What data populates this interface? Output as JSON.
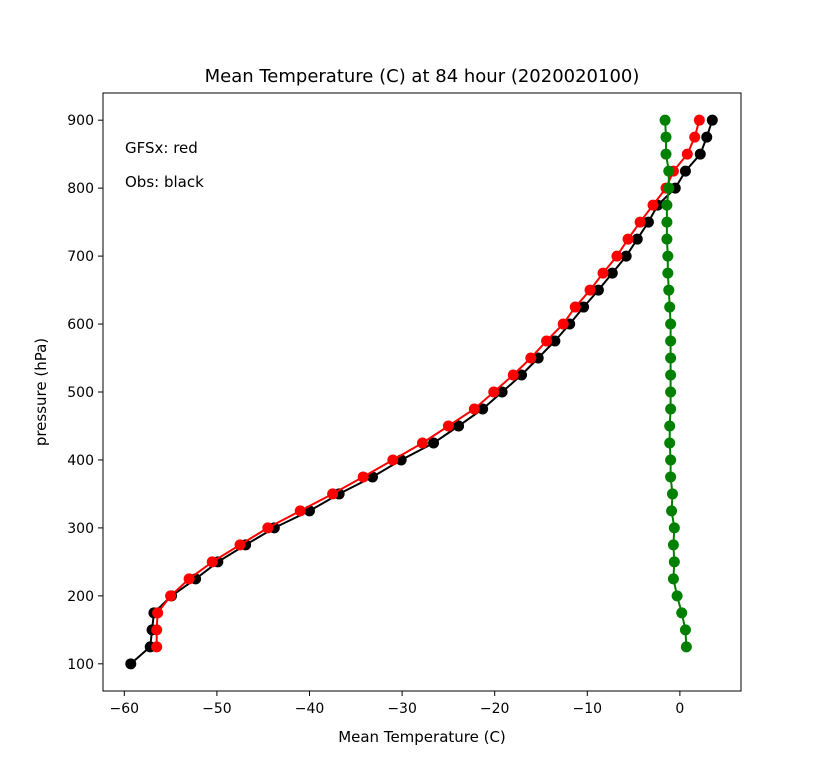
{
  "chart_data": {
    "type": "line",
    "title": "Mean Temperature (C) at 84 hour (2020020100)",
    "xlabel": "Mean Temperature (C)",
    "ylabel": "pressure (hPa)",
    "xlim": [
      -62.3,
      6.6
    ],
    "ylim": [
      60,
      940
    ],
    "xticks": [
      -60,
      -50,
      -40,
      -30,
      -20,
      -10,
      0
    ],
    "xtick_labels": [
      "−60",
      "−50",
      "−40",
      "−30",
      "−20",
      "−10",
      "0"
    ],
    "yticks": [
      100,
      200,
      300,
      400,
      500,
      600,
      700,
      800,
      900
    ],
    "ytick_labels": [
      "100",
      "200",
      "300",
      "400",
      "500",
      "600",
      "700",
      "800",
      "900"
    ],
    "grid": false,
    "annotations": [
      "GFSx: red",
      "Obs: black"
    ],
    "series": [
      {
        "color": "#000000",
        "points": [
          [
            -59.3,
            100
          ],
          [
            -57.2,
            125
          ],
          [
            -57.0,
            150
          ],
          [
            -56.8,
            175
          ],
          [
            -54.9,
            200
          ],
          [
            -52.3,
            225
          ],
          [
            -49.9,
            250
          ],
          [
            -46.9,
            275
          ],
          [
            -43.8,
            300
          ],
          [
            -40.0,
            325
          ],
          [
            -36.8,
            350
          ],
          [
            -33.2,
            375
          ],
          [
            -30.1,
            400
          ],
          [
            -26.6,
            425
          ],
          [
            -23.9,
            450
          ],
          [
            -21.3,
            475
          ],
          [
            -19.2,
            500
          ],
          [
            -17.1,
            525
          ],
          [
            -15.3,
            550
          ],
          [
            -13.5,
            575
          ],
          [
            -11.9,
            600
          ],
          [
            -10.4,
            625
          ],
          [
            -8.8,
            650
          ],
          [
            -7.3,
            675
          ],
          [
            -5.8,
            700
          ],
          [
            -4.6,
            725
          ],
          [
            -3.4,
            750
          ],
          [
            -2.4,
            775
          ],
          [
            -0.5,
            800
          ],
          [
            0.6,
            825
          ],
          [
            2.2,
            850
          ],
          [
            2.9,
            875
          ],
          [
            3.5,
            900
          ]
        ]
      },
      {
        "color": "#ff0000",
        "points": [
          [
            -56.5,
            125
          ],
          [
            -56.5,
            150
          ],
          [
            -56.4,
            175
          ],
          [
            -55.0,
            200
          ],
          [
            -53.0,
            225
          ],
          [
            -50.5,
            250
          ],
          [
            -47.5,
            275
          ],
          [
            -44.5,
            300
          ],
          [
            -41.0,
            325
          ],
          [
            -37.5,
            350
          ],
          [
            -34.2,
            375
          ],
          [
            -31.0,
            400
          ],
          [
            -27.8,
            425
          ],
          [
            -25.0,
            450
          ],
          [
            -22.2,
            475
          ],
          [
            -20.1,
            500
          ],
          [
            -18.0,
            525
          ],
          [
            -16.1,
            550
          ],
          [
            -14.4,
            575
          ],
          [
            -12.6,
            600
          ],
          [
            -11.3,
            625
          ],
          [
            -9.7,
            650
          ],
          [
            -8.3,
            675
          ],
          [
            -6.8,
            700
          ],
          [
            -5.6,
            725
          ],
          [
            -4.3,
            750
          ],
          [
            -2.9,
            775
          ],
          [
            -1.5,
            800
          ],
          [
            -0.7,
            825
          ],
          [
            0.8,
            850
          ],
          [
            1.6,
            875
          ],
          [
            2.1,
            900
          ]
        ]
      },
      {
        "color": "#008000",
        "points": [
          [
            0.7,
            125
          ],
          [
            0.6,
            150
          ],
          [
            0.2,
            175
          ],
          [
            -0.3,
            200
          ],
          [
            -0.7,
            225
          ],
          [
            -0.6,
            250
          ],
          [
            -0.7,
            275
          ],
          [
            -0.6,
            300
          ],
          [
            -0.9,
            325
          ],
          [
            -0.8,
            350
          ],
          [
            -1.0,
            375
          ],
          [
            -1.0,
            400
          ],
          [
            -1.1,
            425
          ],
          [
            -1.1,
            450
          ],
          [
            -1.0,
            475
          ],
          [
            -1.0,
            500
          ],
          [
            -1.0,
            525
          ],
          [
            -1.0,
            550
          ],
          [
            -1.0,
            575
          ],
          [
            -1.0,
            600
          ],
          [
            -1.1,
            625
          ],
          [
            -1.2,
            650
          ],
          [
            -1.3,
            675
          ],
          [
            -1.3,
            700
          ],
          [
            -1.4,
            725
          ],
          [
            -1.4,
            750
          ],
          [
            -1.4,
            775
          ],
          [
            -1.2,
            800
          ],
          [
            -1.2,
            825
          ],
          [
            -1.5,
            850
          ],
          [
            -1.5,
            875
          ],
          [
            -1.6,
            900
          ]
        ]
      }
    ]
  }
}
